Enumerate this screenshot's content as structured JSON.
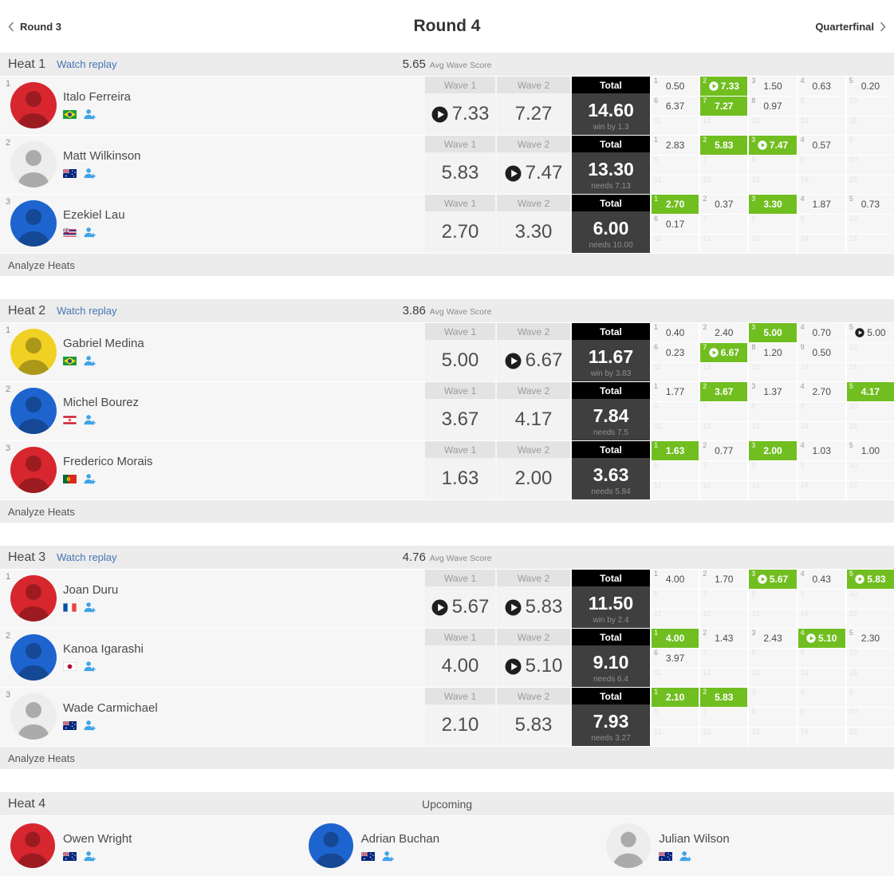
{
  "nav": {
    "prev_label": "Round 3",
    "title": "Round 4",
    "next_label": "Quarterfinal"
  },
  "labels": {
    "watch_replay": "Watch replay",
    "avg_wave_score": "Avg Wave Score",
    "wave1": "Wave 1",
    "wave2": "Wave 2",
    "total": "Total",
    "analyze_heats": "Analyze Heats"
  },
  "colors": {
    "counted_green": "#71be21",
    "link_blue": "#4576b5",
    "person_icon_blue": "#3fa4e8",
    "total_header_bg": "#000000",
    "total_body_bg": "#3f3f3f",
    "jersey": {
      "red": "#d8262e",
      "blue": "#1e64cf",
      "yellow": "#f0d123",
      "white": "#ededed"
    }
  },
  "heats": [
    {
      "title": "Heat 1",
      "status": "completed",
      "avg_wave_score": "5.65",
      "surfers": [
        {
          "rank": "1",
          "name": "Italo Ferreira",
          "country": "brazil",
          "jersey": "red",
          "wave1": {
            "value": "7.33",
            "has_video": true
          },
          "wave2": {
            "value": "7.27",
            "has_video": false
          },
          "total": {
            "value": "14.60",
            "note": "win by 1.3"
          },
          "waves": [
            {
              "score": "0.50"
            },
            {
              "score": "7.33",
              "counted": true,
              "has_video": true
            },
            {
              "score": "1.50"
            },
            {
              "score": "0.63"
            },
            {
              "score": "0.20"
            },
            {
              "score": "6.37"
            },
            {
              "score": "7.27",
              "counted": true
            },
            {
              "score": "0.97"
            }
          ]
        },
        {
          "rank": "2",
          "name": "Matt Wilkinson",
          "country": "australia",
          "jersey": "white",
          "wave1": {
            "value": "5.83",
            "has_video": false
          },
          "wave2": {
            "value": "7.47",
            "has_video": true
          },
          "total": {
            "value": "13.30",
            "note": "needs 7.13"
          },
          "waves": [
            {
              "score": "2.83"
            },
            {
              "score": "5.83",
              "counted": true
            },
            {
              "score": "7.47",
              "counted": true,
              "has_video": true
            },
            {
              "score": "0.57"
            }
          ]
        },
        {
          "rank": "3",
          "name": "Ezekiel Lau",
          "country": "hawaii",
          "jersey": "blue",
          "wave1": {
            "value": "2.70",
            "has_video": false
          },
          "wave2": {
            "value": "3.30",
            "has_video": false
          },
          "total": {
            "value": "6.00",
            "note": "needs 10.00"
          },
          "waves": [
            {
              "score": "2.70",
              "counted": true
            },
            {
              "score": "0.37"
            },
            {
              "score": "3.30",
              "counted": true
            },
            {
              "score": "1.87"
            },
            {
              "score": "0.73"
            },
            {
              "score": "0.17"
            }
          ]
        }
      ]
    },
    {
      "title": "Heat 2",
      "status": "completed",
      "avg_wave_score": "3.86",
      "surfers": [
        {
          "rank": "1",
          "name": "Gabriel Medina",
          "country": "brazil",
          "jersey": "yellow",
          "wave1": {
            "value": "5.00",
            "has_video": false
          },
          "wave2": {
            "value": "6.67",
            "has_video": true
          },
          "total": {
            "value": "11.67",
            "note": "win by 3.83"
          },
          "waves": [
            {
              "score": "0.40"
            },
            {
              "score": "2.40"
            },
            {
              "score": "5.00",
              "counted": true
            },
            {
              "score": "0.70"
            },
            {
              "score": "5.00",
              "has_video": true
            },
            {
              "score": "0.23"
            },
            {
              "score": "6.67",
              "counted": true,
              "has_video": true
            },
            {
              "score": "1.20"
            },
            {
              "score": "0.50"
            }
          ]
        },
        {
          "rank": "2",
          "name": "Michel Bourez",
          "country": "tahiti",
          "jersey": "blue",
          "wave1": {
            "value": "3.67",
            "has_video": false
          },
          "wave2": {
            "value": "4.17",
            "has_video": false
          },
          "total": {
            "value": "7.84",
            "note": "needs 7.5"
          },
          "waves": [
            {
              "score": "1.77"
            },
            {
              "score": "3.67",
              "counted": true
            },
            {
              "score": "1.37"
            },
            {
              "score": "2.70"
            },
            {
              "score": "4.17",
              "counted": true
            }
          ]
        },
        {
          "rank": "3",
          "name": "Frederico Morais",
          "country": "portugal",
          "jersey": "red",
          "wave1": {
            "value": "1.63",
            "has_video": false
          },
          "wave2": {
            "value": "2.00",
            "has_video": false
          },
          "total": {
            "value": "3.63",
            "note": "needs 5.84"
          },
          "waves": [
            {
              "score": "1.63",
              "counted": true
            },
            {
              "score": "0.77"
            },
            {
              "score": "2.00",
              "counted": true
            },
            {
              "score": "1.03"
            },
            {
              "score": "1.00"
            }
          ]
        }
      ]
    },
    {
      "title": "Heat 3",
      "status": "completed",
      "avg_wave_score": "4.76",
      "surfers": [
        {
          "rank": "1",
          "name": "Joan Duru",
          "country": "france",
          "jersey": "red",
          "wave1": {
            "value": "5.67",
            "has_video": true
          },
          "wave2": {
            "value": "5.83",
            "has_video": true
          },
          "total": {
            "value": "11.50",
            "note": "win by 2.4"
          },
          "waves": [
            {
              "score": "4.00"
            },
            {
              "score": "1.70"
            },
            {
              "score": "5.67",
              "counted": true,
              "has_video": true
            },
            {
              "score": "0.43"
            },
            {
              "score": "5.83",
              "counted": true,
              "has_video": true
            }
          ]
        },
        {
          "rank": "2",
          "name": "Kanoa Igarashi",
          "country": "japan",
          "jersey": "blue",
          "wave1": {
            "value": "4.00",
            "has_video": false
          },
          "wave2": {
            "value": "5.10",
            "has_video": true
          },
          "total": {
            "value": "9.10",
            "note": "needs 6.4"
          },
          "waves": [
            {
              "score": "4.00",
              "counted": true
            },
            {
              "score": "1.43"
            },
            {
              "score": "2.43"
            },
            {
              "score": "5.10",
              "counted": true,
              "has_video": true
            },
            {
              "score": "2.30"
            },
            {
              "score": "3.97"
            }
          ]
        },
        {
          "rank": "3",
          "name": "Wade Carmichael",
          "country": "australia",
          "jersey": "white",
          "wave1": {
            "value": "2.10",
            "has_video": false
          },
          "wave2": {
            "value": "5.83",
            "has_video": false
          },
          "total": {
            "value": "7.93",
            "note": "needs 3.27"
          },
          "waves": [
            {
              "score": "2.10",
              "counted": true
            },
            {
              "score": "5.83",
              "counted": true
            }
          ]
        }
      ]
    },
    {
      "title": "Heat 4",
      "status": "upcoming",
      "status_label": "Upcoming",
      "surfers": [
        {
          "name": "Owen Wright",
          "country": "australia",
          "jersey": "red"
        },
        {
          "name": "Adrian Buchan",
          "country": "australia",
          "jersey": "blue"
        },
        {
          "name": "Julian Wilson",
          "country": "australia",
          "jersey": "white"
        }
      ]
    }
  ]
}
